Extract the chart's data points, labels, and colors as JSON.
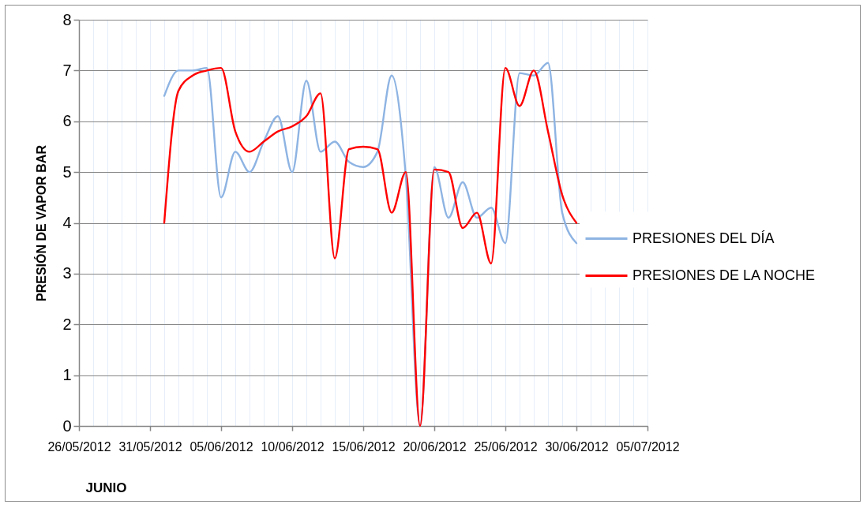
{
  "chart_data": {
    "type": "line",
    "xlabel": "JUNIO",
    "ylabel": "PRESIÓN DE VAPOR BAR",
    "x": [
      "2012-06-01",
      "2012-06-02",
      "2012-06-03",
      "2012-06-04",
      "2012-06-05",
      "2012-06-06",
      "2012-06-07",
      "2012-06-08",
      "2012-06-09",
      "2012-06-10",
      "2012-06-11",
      "2012-06-12",
      "2012-06-13",
      "2012-06-14",
      "2012-06-15",
      "2012-06-16",
      "2012-06-17",
      "2012-06-18",
      "2012-06-19",
      "2012-06-20",
      "2012-06-21",
      "2012-06-22",
      "2012-06-23",
      "2012-06-24",
      "2012-06-25",
      "2012-06-26",
      "2012-06-27",
      "2012-06-28",
      "2012-06-29",
      "2012-06-30"
    ],
    "series": [
      {
        "name": "PRESIONES DEL DÍA",
        "color": "#8eb4e3",
        "values": [
          6.5,
          7.0,
          7.0,
          7.05,
          4.5,
          5.4,
          5.0,
          5.6,
          6.1,
          5.0,
          6.8,
          5.4,
          5.6,
          5.2,
          5.1,
          5.4,
          6.9,
          4.9,
          0,
          5.1,
          4.1,
          4.8,
          4.1,
          4.3,
          3.6,
          6.95,
          6.9,
          7.15,
          4.2,
          3.6
        ]
      },
      {
        "name": "PRESIONES DE LA NOCHE",
        "color": "#ff0000",
        "values": [
          4.0,
          6.6,
          6.9,
          7.0,
          7.05,
          5.8,
          5.4,
          5.6,
          5.8,
          5.9,
          6.1,
          6.55,
          3.3,
          5.45,
          5.5,
          5.45,
          4.2,
          5.0,
          0,
          5.05,
          5.0,
          3.9,
          4.2,
          3.2,
          7.05,
          6.3,
          7.0,
          5.8,
          4.55,
          4.0
        ]
      }
    ],
    "xlim": [
      "2012-05-26",
      "2012-07-05"
    ],
    "xticks": [
      {
        "value": "2012-05-26",
        "label": "26/05/2012"
      },
      {
        "value": "2012-05-27",
        "label": null
      },
      {
        "value": "2012-05-28",
        "label": null
      },
      {
        "value": "2012-05-29",
        "label": null
      },
      {
        "value": "2012-05-30",
        "label": null
      },
      {
        "value": "2012-05-31",
        "label": "31/05/2012"
      },
      {
        "value": "2012-06-01",
        "label": null
      },
      {
        "value": "2012-06-02",
        "label": null
      },
      {
        "value": "2012-06-03",
        "label": null
      },
      {
        "value": "2012-06-04",
        "label": null
      },
      {
        "value": "2012-06-05",
        "label": "05/06/2012"
      },
      {
        "value": "2012-06-06",
        "label": null
      },
      {
        "value": "2012-06-07",
        "label": null
      },
      {
        "value": "2012-06-08",
        "label": null
      },
      {
        "value": "2012-06-09",
        "label": null
      },
      {
        "value": "2012-06-10",
        "label": "10/06/2012"
      },
      {
        "value": "2012-06-11",
        "label": null
      },
      {
        "value": "2012-06-12",
        "label": null
      },
      {
        "value": "2012-06-13",
        "label": null
      },
      {
        "value": "2012-06-14",
        "label": null
      },
      {
        "value": "2012-06-15",
        "label": "15/06/2012"
      },
      {
        "value": "2012-06-16",
        "label": null
      },
      {
        "value": "2012-06-17",
        "label": null
      },
      {
        "value": "2012-06-18",
        "label": null
      },
      {
        "value": "2012-06-19",
        "label": null
      },
      {
        "value": "2012-06-20",
        "label": "20/06/2012"
      },
      {
        "value": "2012-06-21",
        "label": null
      },
      {
        "value": "2012-06-22",
        "label": null
      },
      {
        "value": "2012-06-23",
        "label": null
      },
      {
        "value": "2012-06-24",
        "label": null
      },
      {
        "value": "2012-06-25",
        "label": "25/06/2012"
      },
      {
        "value": "2012-06-26",
        "label": null
      },
      {
        "value": "2012-06-27",
        "label": null
      },
      {
        "value": "2012-06-28",
        "label": null
      },
      {
        "value": "2012-06-29",
        "label": null
      },
      {
        "value": "2012-06-30",
        "label": "30/06/2012"
      },
      {
        "value": "2012-07-01",
        "label": null
      },
      {
        "value": "2012-07-02",
        "label": null
      },
      {
        "value": "2012-07-03",
        "label": null
      },
      {
        "value": "2012-07-04",
        "label": null
      },
      {
        "value": "2012-07-05",
        "label": "05/07/2012"
      }
    ],
    "ylim": [
      0,
      8
    ],
    "yticks": [
      0,
      1,
      2,
      3,
      4,
      5,
      6,
      7,
      8
    ],
    "grid": true,
    "legend": "right"
  }
}
